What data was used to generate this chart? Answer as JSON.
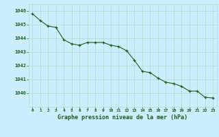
{
  "x": [
    0,
    1,
    2,
    3,
    4,
    5,
    6,
    7,
    8,
    9,
    10,
    11,
    12,
    13,
    14,
    15,
    16,
    17,
    18,
    19,
    20,
    21,
    22,
    23
  ],
  "y": [
    1045.8,
    1045.3,
    1044.9,
    1044.8,
    1043.9,
    1043.6,
    1043.5,
    1043.7,
    1043.7,
    1043.7,
    1043.5,
    1043.4,
    1043.1,
    1042.4,
    1041.6,
    1041.5,
    1041.1,
    1040.8,
    1040.7,
    1040.5,
    1040.15,
    1040.15,
    1039.7,
    1039.65
  ],
  "line_color": "#1a5c1a",
  "marker_color": "#1a5c1a",
  "bg_color": "#cceeff",
  "grid_color": "#aaddcc",
  "xlabel": "Graphe pression niveau de la mer (hPa)",
  "xlabel_color": "#1a5c1a",
  "tick_color": "#1a5c1a",
  "ylim_min": 1039.0,
  "ylim_max": 1046.5,
  "yticks": [
    1040,
    1041,
    1042,
    1043,
    1044,
    1045,
    1046
  ],
  "xticks": [
    0,
    1,
    2,
    3,
    4,
    5,
    6,
    7,
    8,
    9,
    10,
    11,
    12,
    13,
    14,
    15,
    16,
    17,
    18,
    19,
    20,
    21,
    22,
    23
  ]
}
